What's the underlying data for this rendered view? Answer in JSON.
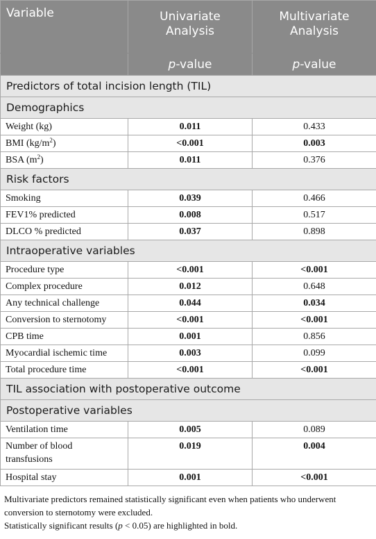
{
  "header": {
    "variable": "Variable",
    "univariate": [
      "Univariate",
      "Analysis"
    ],
    "multivariate": [
      "Multivariate",
      "Analysis"
    ],
    "p_italic": "p",
    "p_suffix": "-value"
  },
  "sections": {
    "predictors": "Predictors of total incision length (TIL)",
    "demographics": "Demographics",
    "risk": "Risk factors",
    "intraop": "Intraoperative variables",
    "association": "TIL association with postoperative outcome",
    "postop": "Postoperative variables"
  },
  "rows": {
    "weight": {
      "name": "Weight (kg)",
      "uni": "0.011",
      "multi": "0.433"
    },
    "bmi": {
      "name_a": "BMI (kg/m",
      "sup": "2",
      "name_b": ")",
      "uni": "<0.001",
      "multi": "0.003"
    },
    "bsa": {
      "name_a": "BSA (m",
      "sup": "2",
      "name_b": ")",
      "uni": "0.011",
      "multi": "0.376"
    },
    "smoking": {
      "name": "Smoking",
      "uni": "0.039",
      "multi": "0.466"
    },
    "fev1": {
      "name": "FEV1% predicted",
      "uni": "0.008",
      "multi": "0.517"
    },
    "dlco": {
      "name": "DLCO % predicted",
      "uni": "0.037",
      "multi": "0.898"
    },
    "procedure": {
      "name": "Procedure type",
      "uni": "<0.001",
      "multi": "<0.001"
    },
    "complex": {
      "name": "Complex procedure",
      "uni": "0.012",
      "multi": "0.648"
    },
    "technical": {
      "name": "Any technical challenge",
      "uni": "0.044",
      "multi": "0.034"
    },
    "conversion": {
      "name": "Conversion to sternotomy",
      "uni": "<0.001",
      "multi": "<0.001"
    },
    "cpb": {
      "name": "CPB time",
      "uni": "0.001",
      "multi": "0.856"
    },
    "ischemic": {
      "name": "Myocardial ischemic time",
      "uni": "0.003",
      "multi": "0.099"
    },
    "total": {
      "name": "Total procedure time",
      "uni": "<0.001",
      "multi": "<0.001"
    },
    "ventilation": {
      "name": "Ventilation time",
      "uni": "0.005",
      "multi": "0.089"
    },
    "blood": {
      "name_a": "Number of blood",
      "name_b": "transfusions",
      "uni": "0.019",
      "multi": "0.004"
    },
    "hospital": {
      "name": "Hospital stay",
      "uni": "0.001",
      "multi": "<0.001"
    }
  },
  "notes": {
    "line1": "Multivariate predictors remained statistically significant even when patients who underwent conversion to sternotomy were excluded.",
    "line2_a": "Statistically significant results (",
    "line2_p": "p",
    "line2_b": " < 0.05) are highlighted in bold."
  }
}
